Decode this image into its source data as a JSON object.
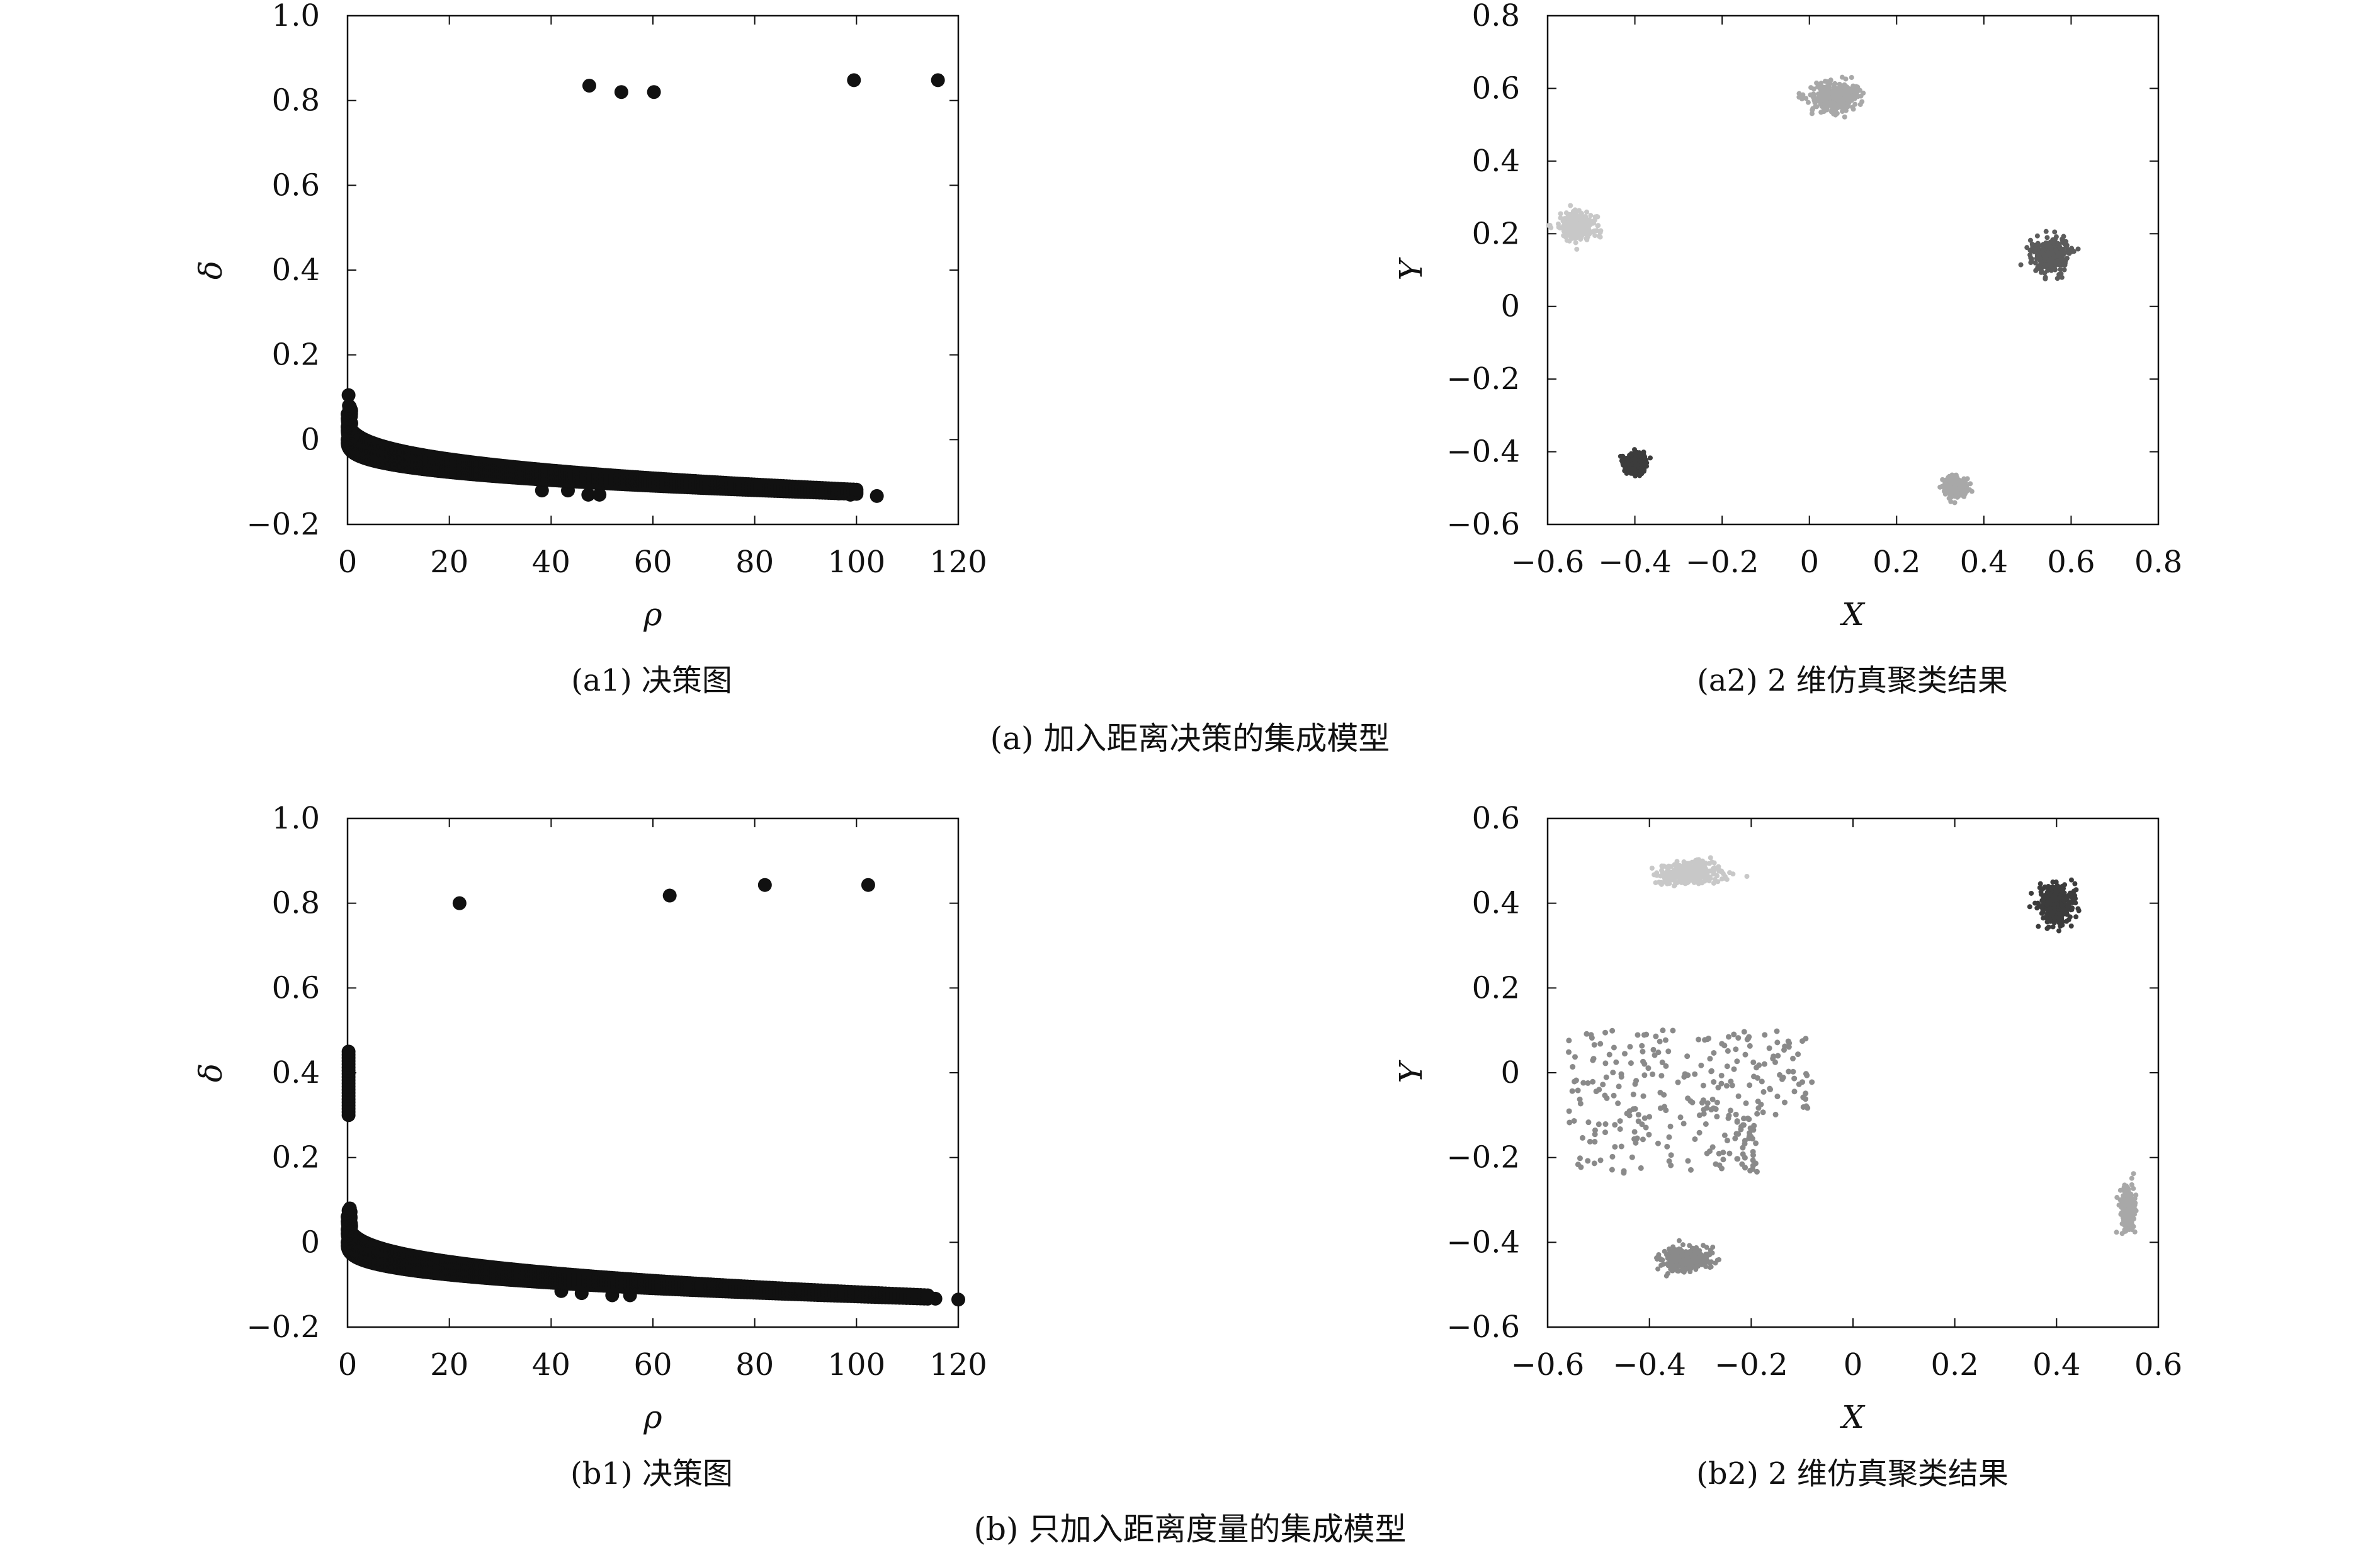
{
  "figure": {
    "caption_a": "(a) 加入距离决策的集成模型",
    "caption_b": "(b) 只加入距离度量的集成模型"
  },
  "colors": {
    "black": "#111111",
    "cluster_light": "#c8c8c8",
    "cluster_mid_light": "#a8a8a8",
    "cluster_mid": "#8a8a8a",
    "cluster_dark": "#5c5c5c",
    "cluster_darkest": "#3c3c3c"
  },
  "chart_data": [
    {
      "id": "a1",
      "type": "scatter",
      "subcaption": "(a1) 决策图",
      "xlabel": "ρ",
      "ylabel": "δ",
      "xlim": [
        0,
        120
      ],
      "ylim": [
        -0.2,
        1.0
      ],
      "xticks": [
        "0",
        "20",
        "40",
        "60",
        "80",
        "100",
        "120"
      ],
      "yticks": [
        "−0.2",
        "0",
        "0.2",
        "0.4",
        "0.6",
        "0.8",
        "1.0"
      ],
      "grid": false,
      "legend": "none",
      "series": [
        {
          "role": "centers",
          "points": [
            [
              47.5,
              0.835
            ],
            [
              53.8,
              0.82
            ],
            [
              60.2,
              0.82
            ],
            [
              99.5,
              0.848
            ],
            [
              116.0,
              0.848
            ]
          ]
        },
        {
          "role": "outliers",
          "points": [
            [
              0.2,
              0.105
            ],
            [
              38.2,
              -0.12
            ],
            [
              43.3,
              -0.12
            ],
            [
              47.3,
              -0.13
            ],
            [
              49.5,
              -0.13
            ],
            [
              96.5,
              -0.127
            ],
            [
              98.8,
              -0.13
            ],
            [
              104.0,
              -0.133
            ]
          ]
        },
        {
          "role": "decay_band",
          "curve": {
            "x_range": [
              0,
              100
            ],
            "y_top": [
              0.06,
              -0.118
            ],
            "y_bottom": [
              0.0,
              -0.128
            ]
          }
        }
      ]
    },
    {
      "id": "a2",
      "type": "scatter",
      "subcaption": "(a2) 2 维仿真聚类结果",
      "xlabel": "X",
      "ylabel": "Y",
      "xlim": [
        -0.6,
        0.8
      ],
      "ylim": [
        -0.6,
        0.8
      ],
      "xticks": [
        "−0.6",
        "−0.4",
        "−0.2",
        "0",
        "0.2",
        "0.4",
        "0.6",
        "0.8"
      ],
      "yticks": [
        "−0.6",
        "−0.4",
        "−0.2",
        "0",
        "0.2",
        "0.4",
        "0.6",
        "0.8"
      ],
      "grid": false,
      "legend": "none",
      "series": [
        {
          "cluster": 1,
          "color_key": "cluster_mid_light",
          "center": [
            0.06,
            0.575
          ],
          "spread": [
            0.06,
            0.045
          ]
        },
        {
          "cluster": 2,
          "color_key": "cluster_light",
          "center": [
            -0.53,
            0.22
          ],
          "spread": [
            0.045,
            0.04
          ]
        },
        {
          "cluster": 3,
          "color_key": "cluster_dark",
          "center": [
            0.55,
            0.14
          ],
          "spread": [
            0.05,
            0.05
          ]
        },
        {
          "cluster": 4,
          "color_key": "cluster_darkest",
          "center": [
            -0.4,
            -0.43
          ],
          "spread": [
            0.025,
            0.03
          ]
        },
        {
          "cluster": 5,
          "color_key": "cluster_mid_light",
          "center": [
            0.335,
            -0.5
          ],
          "spread": [
            0.025,
            0.03
          ]
        }
      ]
    },
    {
      "id": "b1",
      "type": "scatter",
      "subcaption": "(b1) 决策图",
      "xlabel": "ρ",
      "ylabel": "δ",
      "xlim": [
        0,
        120
      ],
      "ylim": [
        -0.2,
        1.0
      ],
      "xticks": [
        "0",
        "20",
        "40",
        "60",
        "80",
        "100",
        "120"
      ],
      "yticks": [
        "−0.2",
        "0",
        "0.2",
        "0.4",
        "0.6",
        "0.8",
        "1.0"
      ],
      "grid": false,
      "legend": "none",
      "series": [
        {
          "role": "centers",
          "points": [
            [
              22.0,
              0.8
            ],
            [
              63.3,
              0.818
            ],
            [
              82.0,
              0.843
            ],
            [
              102.3,
              0.843
            ]
          ]
        },
        {
          "role": "low_density_column",
          "x": 0.2,
          "y_range": [
            0.3,
            0.45
          ]
        },
        {
          "role": "outliers",
          "points": [
            [
              0.2,
              0.075
            ],
            [
              42.0,
              -0.115
            ],
            [
              46.0,
              -0.12
            ],
            [
              52.0,
              -0.125
            ],
            [
              55.5,
              -0.125
            ],
            [
              115.5,
              -0.133
            ],
            [
              120.0,
              -0.135
            ]
          ]
        },
        {
          "role": "decay_band",
          "curve": {
            "x_range": [
              0,
              114
            ],
            "y_top": [
              0.06,
              -0.125
            ],
            "y_bottom": [
              0.0,
              -0.133
            ]
          }
        }
      ]
    },
    {
      "id": "b2",
      "type": "scatter",
      "subcaption": "(b2) 2 维仿真聚类结果",
      "xlabel": "X",
      "ylabel": "Y",
      "xlim": [
        -0.6,
        0.6
      ],
      "ylim": [
        -0.6,
        0.6
      ],
      "xticks": [
        "−0.6",
        "−0.4",
        "−0.2",
        "0",
        "0.2",
        "0.4",
        "0.6"
      ],
      "yticks": [
        "−0.6",
        "−0.4",
        "−0.2",
        "0",
        "0.2",
        "0.4",
        "0.6"
      ],
      "grid": false,
      "legend": "none",
      "series": [
        {
          "cluster": 1,
          "color_key": "cluster_light",
          "center": [
            -0.32,
            0.47
          ],
          "spread": [
            0.07,
            0.025
          ]
        },
        {
          "cluster": 2,
          "color_key": "cluster_darkest",
          "center": [
            0.4,
            0.4
          ],
          "spread": [
            0.04,
            0.05
          ]
        },
        {
          "cluster": 3,
          "color_key": "cluster_mid",
          "center": [
            -0.32,
            -0.07
          ],
          "spread": [
            0.24,
            0.17
          ]
        },
        {
          "cluster": 4,
          "color_key": "cluster_mid",
          "center": [
            -0.33,
            -0.44
          ],
          "spread": [
            0.055,
            0.03
          ]
        },
        {
          "cluster": 5,
          "color_key": "cluster_mid_light",
          "center": [
            0.54,
            -0.32
          ],
          "spread": [
            0.015,
            0.05
          ]
        }
      ]
    }
  ]
}
